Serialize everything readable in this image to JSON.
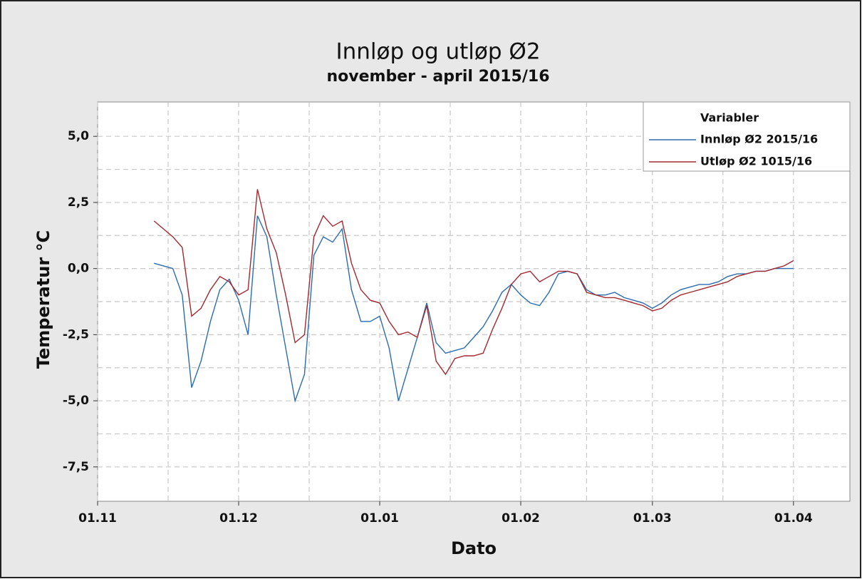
{
  "chart_data": {
    "type": "line",
    "title": "Innløp og utløp Ø2",
    "subtitle": "november - april 2015/16",
    "x_label": "Dato",
    "y_label": "Temperatur °C",
    "legend_title": "Variabler",
    "legend": "upper right",
    "grid": true,
    "x": [
      12,
      14,
      16,
      18,
      20,
      22,
      24,
      26,
      28,
      30,
      32,
      34,
      36,
      38,
      40,
      42,
      44,
      46,
      48,
      50,
      52,
      54,
      56,
      58,
      60,
      62,
      64,
      66,
      68,
      70,
      72,
      74,
      76,
      78,
      80,
      82,
      84,
      86,
      88,
      90,
      92,
      94,
      96,
      98,
      100,
      102,
      104,
      106,
      108,
      110,
      112,
      114,
      116,
      118,
      120,
      122,
      124,
      126,
      128,
      130,
      132,
      134,
      136,
      138,
      140,
      142,
      144,
      146,
      148
    ],
    "series": [
      {
        "name": "Innløp Ø2 2015/16",
        "color": "#2b6cb0",
        "values": [
          0.2,
          0.1,
          0.0,
          -1.0,
          -4.5,
          -3.5,
          -2.0,
          -0.8,
          -0.4,
          -1.2,
          -2.5,
          2.0,
          1.2,
          -1.0,
          -3.0,
          -5.0,
          -4.0,
          0.5,
          1.2,
          1.0,
          1.5,
          -0.8,
          -2.0,
          -2.0,
          -1.8,
          -3.0,
          -5.0,
          -3.8,
          -2.6,
          -1.3,
          -2.8,
          -3.2,
          -3.1,
          -3.0,
          -2.6,
          -2.2,
          -1.6,
          -0.9,
          -0.6,
          -1.0,
          -1.3,
          -1.4,
          -0.9,
          -0.2,
          -0.1,
          -0.2,
          -0.8,
          -1.0,
          -1.0,
          -0.9,
          -1.1,
          -1.2,
          -1.3,
          -1.5,
          -1.3,
          -1.0,
          -0.8,
          -0.7,
          -0.6,
          -0.6,
          -0.5,
          -0.3,
          -0.2,
          -0.2,
          -0.1,
          -0.1,
          0.0,
          0.0,
          0.0
        ]
      },
      {
        "name": "Utløp Ø2 1015/16",
        "color": "#a3282f",
        "values": [
          1.8,
          1.5,
          1.2,
          0.8,
          -1.8,
          -1.5,
          -0.8,
          -0.3,
          -0.5,
          -1.0,
          -0.8,
          3.0,
          1.5,
          0.6,
          -1.0,
          -2.8,
          -2.5,
          1.2,
          2.0,
          1.6,
          1.8,
          0.2,
          -0.8,
          -1.2,
          -1.3,
          -2.0,
          -2.5,
          -2.4,
          -2.6,
          -1.4,
          -3.5,
          -4.0,
          -3.4,
          -3.3,
          -3.3,
          -3.2,
          -2.3,
          -1.5,
          -0.6,
          -0.2,
          -0.1,
          -0.5,
          -0.3,
          -0.1,
          -0.1,
          -0.2,
          -0.9,
          -1.0,
          -1.1,
          -1.1,
          -1.2,
          -1.3,
          -1.4,
          -1.6,
          -1.5,
          -1.2,
          -1.0,
          -0.9,
          -0.8,
          -0.7,
          -0.6,
          -0.5,
          -0.3,
          -0.2,
          -0.1,
          -0.1,
          0.0,
          0.1,
          0.3
        ]
      }
    ],
    "xlim": [
      0,
      160
    ],
    "xticks": [
      {
        "value": 0,
        "label": "01.11"
      },
      {
        "value": 30,
        "label": "01.12"
      },
      {
        "value": 60,
        "label": "01.01"
      },
      {
        "value": 90,
        "label": "01.02"
      },
      {
        "value": 118,
        "label": "01.03"
      },
      {
        "value": 148,
        "label": "01.04"
      }
    ],
    "ylim": [
      -8.8,
      6.3
    ],
    "yticks": [
      {
        "value": -7.5,
        "label": "-7,5"
      },
      {
        "value": -5,
        "label": "-5,0"
      },
      {
        "value": -2.5,
        "label": "-2,5"
      },
      {
        "value": 0,
        "label": "0,0"
      },
      {
        "value": 2.5,
        "label": "2,5"
      },
      {
        "value": 5,
        "label": "5,0"
      }
    ]
  }
}
